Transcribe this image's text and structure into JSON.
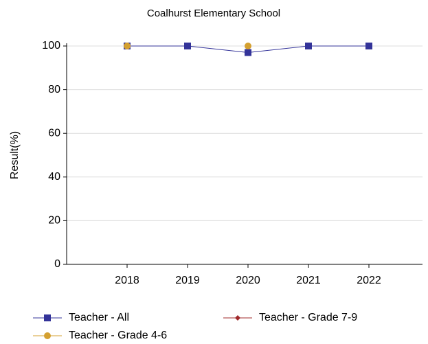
{
  "chart_data": {
    "type": "line",
    "title": "Coalhurst Elementary School",
    "y_label": "Result(%)",
    "categories": [
      "2018",
      "2019",
      "2020",
      "2021",
      "2022"
    ],
    "series": [
      {
        "name": "Teacher - All",
        "color": "#333399",
        "marker": "square",
        "values": [
          100,
          100,
          97,
          100,
          100
        ]
      },
      {
        "name": "Teacher - Grade 7-9",
        "color": "#a0282a",
        "marker": "diamond",
        "values": [
          null,
          null,
          null,
          null,
          null
        ]
      },
      {
        "name": "Teacher - Grade 4-6",
        "color": "#d4a030",
        "marker": "circle",
        "values": [
          100,
          null,
          100,
          null,
          null
        ]
      }
    ],
    "ylim": [
      0,
      100
    ],
    "yticks": [
      0,
      20,
      40,
      60,
      80,
      100
    ],
    "grid": true,
    "legend": "bottom"
  }
}
